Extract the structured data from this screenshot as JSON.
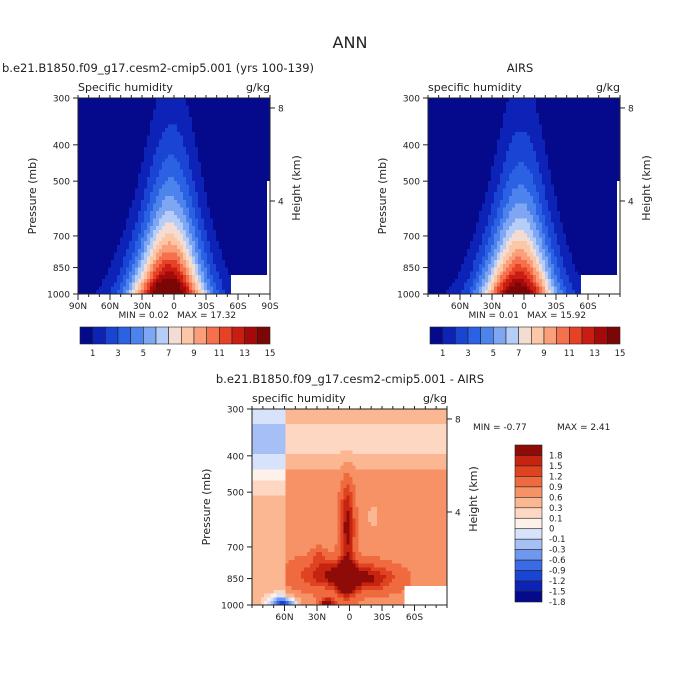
{
  "figure": {
    "title": "ANN"
  },
  "colors": {
    "pos_scale": [
      "#050a8c",
      "#0d23b7",
      "#1a44d3",
      "#2b62e3",
      "#4d83ed",
      "#7fa6f2",
      "#b5cdf7",
      "#f3ddd3",
      "#fbc7a6",
      "#fb9f7a",
      "#f5704c",
      "#e64226",
      "#c91c12",
      "#a50a0a",
      "#7b0606"
    ],
    "diff_scale": [
      "#050a8c",
      "#0d23b7",
      "#1a44d3",
      "#3a6be6",
      "#6e97f0",
      "#a6c0f5",
      "#d6e3fa",
      "#fdf1ea",
      "#fdd7c2",
      "#fbb791",
      "#f79266",
      "#f06a40",
      "#e04321",
      "#c62410",
      "#8e0b07"
    ]
  },
  "chart_data": [
    {
      "type": "heatmap",
      "panel": "model",
      "title": "b.e21.B1850.f09_g17.cesm2-cmip5.001 (yrs 100-139)",
      "left_label": "Specific humidity",
      "right_label": "g/kg",
      "ylabel": "Pressure (mb)",
      "ylabel_right": "Height (km)",
      "xlim": [
        90,
        -90
      ],
      "ylim": [
        1000,
        300
      ],
      "y_log": true,
      "xticks": [
        "90N",
        "60N",
        "30N",
        "0",
        "30S",
        "60S",
        "90S"
      ],
      "xtick_values": [
        90,
        60,
        30,
        0,
        -30,
        -60,
        -90
      ],
      "yticks": [
        "300",
        "400",
        "500",
        "700",
        "850",
        "1000"
      ],
      "ytick_values": [
        300,
        400,
        500,
        700,
        850,
        1000
      ],
      "height_ticks": [
        "4",
        "8"
      ],
      "height_tick_values": [
        4,
        8
      ],
      "min_label": "MIN =   0.02",
      "max_label": "MAX =  17.32",
      "peak_value": 17.32,
      "colorbar_labels": [
        "1",
        "3",
        "5",
        "7",
        "9",
        "11",
        "13",
        "15"
      ],
      "levels": [
        0,
        1,
        2,
        3,
        4,
        5,
        6,
        7,
        8,
        9,
        10,
        11,
        12,
        13,
        14,
        15
      ]
    },
    {
      "type": "heatmap",
      "panel": "obs",
      "title": "AIRS",
      "left_label": "specific humidity",
      "right_label": "g/kg",
      "ylabel": "Pressure (mb)",
      "ylabel_right": "Height (km)",
      "xlim": [
        90,
        -90
      ],
      "ylim": [
        1000,
        300
      ],
      "y_log": true,
      "xticks": [
        "60N",
        "30N",
        "0",
        "30S",
        "60S"
      ],
      "xtick_values": [
        60,
        30,
        0,
        -30,
        -60
      ],
      "yticks": [
        "300",
        "400",
        "500",
        "700",
        "850",
        "1000"
      ],
      "ytick_values": [
        300,
        400,
        500,
        700,
        850,
        1000
      ],
      "height_ticks": [
        "4",
        "8"
      ],
      "height_tick_values": [
        4,
        8
      ],
      "min_label": "MIN =   0.01",
      "max_label": "MAX =  15.92",
      "peak_value": 15.92,
      "colorbar_labels": [
        "1",
        "3",
        "5",
        "7",
        "9",
        "11",
        "13",
        "15"
      ],
      "levels": [
        0,
        1,
        2,
        3,
        4,
        5,
        6,
        7,
        8,
        9,
        10,
        11,
        12,
        13,
        14,
        15
      ]
    },
    {
      "type": "heatmap",
      "panel": "diff",
      "title": "b.e21.B1850.f09_g17.cesm2-cmip5.001 - AIRS",
      "left_label": "specific humidity",
      "right_label": "g/kg",
      "ylabel": "Pressure (mb)",
      "ylabel_right": "Height (km)",
      "xlim": [
        90,
        -90
      ],
      "ylim": [
        1000,
        300
      ],
      "y_log": true,
      "xticks": [
        "60N",
        "30N",
        "0",
        "30S",
        "60S"
      ],
      "xtick_values": [
        60,
        30,
        0,
        -30,
        -60
      ],
      "yticks": [
        "300",
        "400",
        "500",
        "700",
        "850",
        "1000"
      ],
      "ytick_values": [
        300,
        400,
        500,
        700,
        850,
        1000
      ],
      "height_ticks": [
        "4",
        "8"
      ],
      "height_tick_values": [
        4,
        8
      ],
      "min_label": "MIN =  -0.77",
      "max_label": "MAX =   2.41",
      "min_value": -0.77,
      "max_value": 2.41,
      "colorbar_labels": [
        "1.8",
        "1.5",
        "1.2",
        "0.9",
        "0.6",
        "0.3",
        "0.1",
        "0",
        "-0.1",
        "-0.3",
        "-0.6",
        "-0.9",
        "-1.2",
        "-1.5",
        "-1.8"
      ],
      "levels": [
        1.8,
        1.5,
        1.2,
        0.9,
        0.6,
        0.3,
        0.1,
        0,
        -0.1,
        -0.3,
        -0.6,
        -0.9,
        -1.2,
        -1.5,
        -1.8
      ]
    }
  ]
}
